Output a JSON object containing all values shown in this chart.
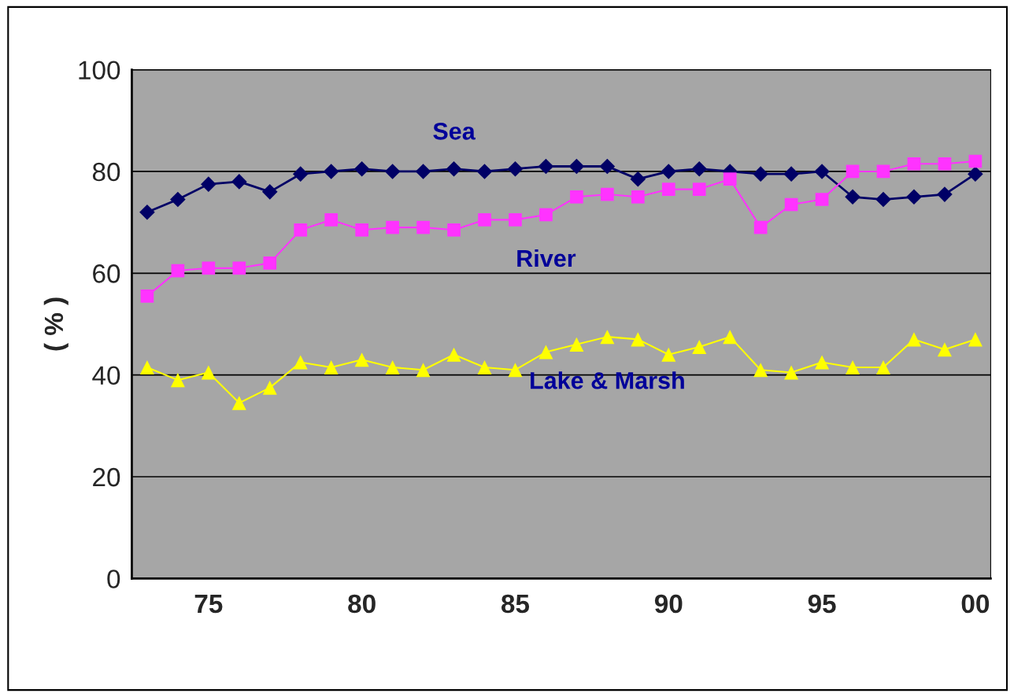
{
  "chart_data": {
    "type": "line",
    "ylabel": "( % )",
    "categories": [
      null,
      null,
      "75",
      null,
      null,
      null,
      null,
      "80",
      null,
      null,
      null,
      null,
      "85",
      null,
      null,
      null,
      null,
      "90",
      null,
      null,
      null,
      null,
      "95",
      null,
      null,
      null,
      null,
      "00"
    ],
    "series": [
      {
        "name": "Sea",
        "color": "#000066",
        "marker": "diamond",
        "values": [
          72,
          74.5,
          77.5,
          78,
          76,
          79.5,
          80,
          80.5,
          80,
          80,
          80.5,
          80,
          80.5,
          81,
          81,
          81,
          78.5,
          80,
          80.5,
          80,
          79.5,
          79.5,
          80,
          75,
          74.5,
          75,
          75.5,
          79.5
        ]
      },
      {
        "name": "River",
        "color": "#ff33ff",
        "marker": "square",
        "values": [
          55.5,
          60.5,
          61,
          61,
          62,
          68.5,
          70.5,
          68.5,
          69,
          69,
          68.5,
          70.5,
          70.5,
          71.5,
          75,
          75.5,
          75,
          76.5,
          76.5,
          78.5,
          69,
          73.5,
          74.5,
          80,
          80,
          81.5,
          81.5,
          82
        ]
      },
      {
        "name": "Lake & Marsh",
        "color": "#ffff00",
        "marker": "triangle",
        "values": [
          41.5,
          39,
          40.5,
          34.5,
          37.5,
          42.5,
          41.5,
          43,
          41.5,
          41,
          44,
          41.5,
          41,
          44.5,
          46,
          47.5,
          47,
          44,
          45.5,
          47.5,
          41,
          40.5,
          42.5,
          41.5,
          41.5,
          47,
          45,
          47
        ]
      }
    ],
    "ylim": [
      0,
      100
    ],
    "yticks": [
      0,
      20,
      40,
      60,
      80,
      100
    ],
    "grid": "y",
    "legend": false
  }
}
